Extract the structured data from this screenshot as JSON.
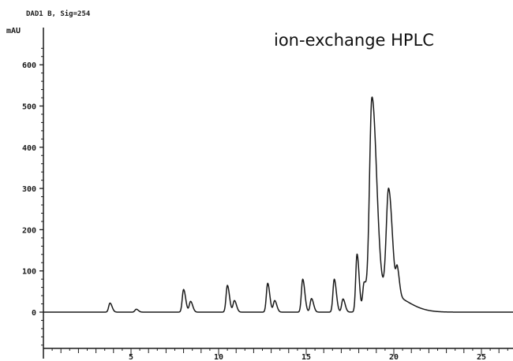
{
  "chart_data": {
    "type": "line",
    "header": "DAD1 B, Sig=254",
    "ylabel": "mAU",
    "title": "ion-exchange HPLC",
    "xlabel": "",
    "xlim": [
      0,
      28.9
    ],
    "ylim": [
      -100,
      660
    ],
    "x_ticks": [
      5,
      10,
      15,
      20,
      25
    ],
    "y_ticks": [
      0,
      100,
      200,
      300,
      400,
      500,
      600
    ],
    "grid": false,
    "line_color": "#1a1a1a",
    "peaks": [
      {
        "rt": 3.8,
        "height": 22
      },
      {
        "rt": 5.3,
        "height": 7
      },
      {
        "rt": 8.0,
        "height": 55
      },
      {
        "rt": 8.4,
        "height": 26
      },
      {
        "rt": 10.5,
        "height": 65
      },
      {
        "rt": 10.9,
        "height": 28
      },
      {
        "rt": 12.8,
        "height": 70
      },
      {
        "rt": 13.2,
        "height": 28
      },
      {
        "rt": 14.8,
        "height": 80
      },
      {
        "rt": 15.3,
        "height": 33
      },
      {
        "rt": 16.6,
        "height": 80
      },
      {
        "rt": 17.1,
        "height": 32
      },
      {
        "rt": 17.9,
        "height": 140
      },
      {
        "rt": 18.3,
        "height": 65
      },
      {
        "rt": 18.75,
        "height": 505
      },
      {
        "rt": 19.7,
        "height": 255
      },
      {
        "rt": 20.2,
        "height": 60
      }
    ]
  }
}
